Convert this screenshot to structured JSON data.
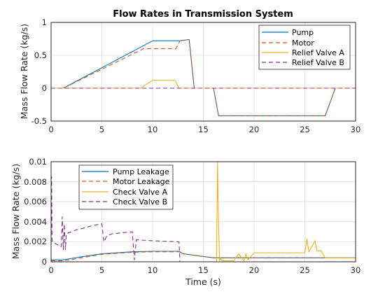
{
  "colors": {
    "blue": "#0072BD",
    "red": "#D95319",
    "yellow": "#EDB120",
    "purple": "#7E2F8E",
    "grid": "#dfdfdf",
    "axis": "#262626"
  },
  "chart_data": [
    {
      "type": "line",
      "title": "Flow Rates in Transmission System",
      "xlabel": "",
      "ylabel": "Mass Flow Rate (kg/s)",
      "xlim": [
        0,
        30
      ],
      "ylim": [
        -0.5,
        1
      ],
      "xticks": [
        "0",
        "5",
        "10",
        "15",
        "20",
        "25",
        "30"
      ],
      "yticks": [
        "-0.5",
        "0",
        "0.5",
        "1"
      ],
      "ytick_values": [
        -0.5,
        0,
        0.5,
        1
      ],
      "grid": true,
      "legend_position": "top-right",
      "series": [
        {
          "name": "Pump",
          "color": "#0072BD",
          "style": "solid",
          "x": [
            0,
            1.2,
            10,
            12.7,
            13.6,
            14.1,
            16,
            16.5,
            27,
            28,
            30
          ],
          "y": [
            0,
            0,
            0.72,
            0.72,
            0.74,
            0,
            0,
            -0.42,
            -0.42,
            0,
            0
          ]
        },
        {
          "name": "Motor",
          "color": "#D95319",
          "style": "dashed",
          "x": [
            0,
            1.2,
            9.1,
            12.3,
            12.7,
            13.6,
            14.1,
            16,
            16.5,
            27,
            28,
            30
          ],
          "y": [
            0,
            0,
            0.6,
            0.6,
            0.72,
            0.74,
            0,
            0,
            -0.42,
            -0.42,
            0,
            0
          ]
        },
        {
          "name": "Relief Valve A",
          "color": "#EDB120",
          "style": "solid",
          "x": [
            0,
            8.8,
            9.5,
            10,
            12.2,
            12.6,
            30
          ],
          "y": [
            0,
            0,
            0.07,
            0.12,
            0.12,
            0,
            0
          ]
        },
        {
          "name": "Relief Valve B",
          "color": "#7E2F8E",
          "style": "dashed",
          "x": [
            0,
            30
          ],
          "y": [
            0,
            0
          ]
        }
      ]
    },
    {
      "type": "line",
      "title": "",
      "xlabel": "Time (s)",
      "ylabel": "Mass Flow Rate (kg/s)",
      "xlim": [
        0,
        30
      ],
      "ylim": [
        0,
        0.01
      ],
      "xticks": [
        "0",
        "5",
        "10",
        "15",
        "20",
        "25",
        "30"
      ],
      "yticks": [
        "0",
        "0.002",
        "0.004",
        "0.006",
        "0.008",
        "0.01"
      ],
      "ytick_values": [
        0,
        0.002,
        0.004,
        0.006,
        0.008,
        0.01
      ],
      "grid": true,
      "legend_position": "top-left",
      "series": [
        {
          "name": "Pump Leakage",
          "color": "#0072BD",
          "style": "solid",
          "x": [
            0,
            1.2,
            3,
            5,
            8,
            10,
            12.6,
            13,
            16,
            16.5,
            18,
            20,
            22,
            24,
            26,
            28,
            30
          ],
          "y": [
            0.0002,
            0.0002,
            0.0005,
            0.0008,
            0.001,
            0.00105,
            0.00105,
            0.0008,
            0.0004,
            0.0004,
            0.0004,
            0.0004,
            0.0004,
            0.0004,
            0.0004,
            0.0004,
            0.0004
          ]
        },
        {
          "name": "Motor Leakage",
          "color": "#D95319",
          "style": "dashed",
          "x": [
            0,
            1.2,
            3,
            5,
            8,
            10,
            12.6,
            13,
            16,
            16.5,
            18,
            20,
            22,
            24,
            26,
            28,
            30
          ],
          "y": [
            0.0001,
            0.0001,
            0.0004,
            0.00075,
            0.00095,
            0.001,
            0.001,
            0.0008,
            0.0004,
            0.0004,
            0.0004,
            0.0004,
            0.0004,
            0.0004,
            0.0004,
            0.0004,
            0.0004
          ]
        },
        {
          "name": "Check Valve A",
          "color": "#EDB120",
          "style": "solid",
          "x": [
            0,
            16.3,
            16.4,
            16.5,
            16.6,
            16.7,
            16.8,
            17,
            18,
            18.5,
            19,
            19.2,
            19.4,
            20,
            21,
            22,
            23,
            24,
            25,
            25.2,
            25.4,
            26,
            26.2,
            26.6,
            27,
            30
          ],
          "y": [
            0,
            0,
            0.01,
            0.0035,
            0.0001,
            0.0004,
            0.0001,
            0.0001,
            0.0001,
            0.0008,
            0.0001,
            0.0008,
            0.0002,
            0.0009,
            0.0009,
            0.0009,
            0.0009,
            0.0009,
            0.0009,
            0.0023,
            0.001,
            0.0021,
            0.0011,
            0.0011,
            0.0004,
            0.0004
          ]
        },
        {
          "name": "Check Valve B",
          "color": "#7E2F8E",
          "style": "dashed",
          "x": [
            0,
            0.05,
            0.1,
            1,
            1.1,
            1.2,
            1.3,
            1.4,
            1.5,
            2,
            2.5,
            3,
            4,
            5,
            5.2,
            5.5,
            6,
            8,
            8.2,
            8.4,
            10,
            12.6,
            12.7,
            30
          ],
          "y": [
            0.002,
            0.0085,
            0.002,
            0.0015,
            0.0045,
            0.0012,
            0.0038,
            0.0012,
            0.0028,
            0.003,
            0.0032,
            0.0033,
            0.0036,
            0.0038,
            0.002,
            0.0026,
            0.0028,
            0.003,
            0.0002,
            0.0022,
            0.0021,
            0.002,
            0,
            0
          ]
        }
      ]
    }
  ]
}
